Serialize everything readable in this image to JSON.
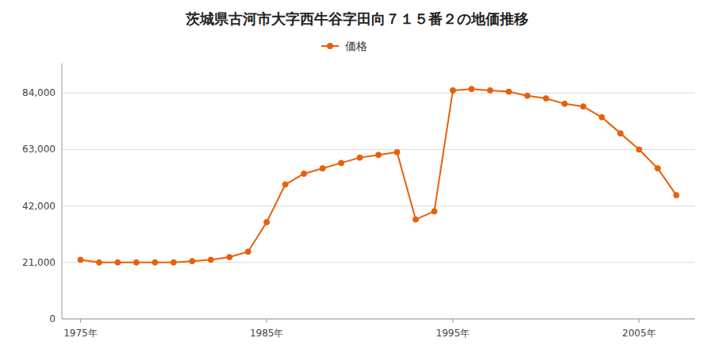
{
  "chart_data": {
    "type": "line",
    "title": "茨城県古河市大字西牛谷字田向７１５番２の地価推移",
    "x": [
      1975,
      1976,
      1977,
      1978,
      1979,
      1980,
      1981,
      1982,
      1983,
      1984,
      1985,
      1986,
      1987,
      1988,
      1989,
      1990,
      1991,
      1992,
      1993,
      1994,
      1995,
      1996,
      1997,
      1998,
      1999,
      2000,
      2001,
      2002,
      2003,
      2004,
      2005,
      2006,
      2007
    ],
    "series": [
      {
        "name": "価格",
        "color": "#E8600A",
        "marker": "circle",
        "line_style": "solid",
        "values": [
          22000,
          21000,
          21000,
          21000,
          21000,
          21000,
          21500,
          22000,
          23000,
          25000,
          36000,
          50000,
          54000,
          56000,
          58000,
          60000,
          61000,
          62000,
          37000,
          40000,
          85000,
          85500,
          85000,
          84500,
          83000,
          82000,
          80000,
          79000,
          75000,
          69000,
          63000,
          56000,
          46000
        ]
      }
    ],
    "xlim": [
      1974,
      2008
    ],
    "xticks": [
      {
        "value": 1975,
        "label": "1975年"
      },
      {
        "value": 1985,
        "label": "1985年"
      },
      {
        "value": 1995,
        "label": "1995年"
      },
      {
        "value": 2005,
        "label": "2005年"
      }
    ],
    "ylim": [
      0,
      95000
    ],
    "yticks": [
      0,
      {
        "value": 21000,
        "label": "21,000"
      },
      {
        "value": 42000,
        "label": "42,000"
      },
      {
        "value": 63000,
        "label": "63,000"
      },
      {
        "value": 84000,
        "label": "84,000"
      }
    ],
    "grid": true,
    "legend": "top"
  }
}
